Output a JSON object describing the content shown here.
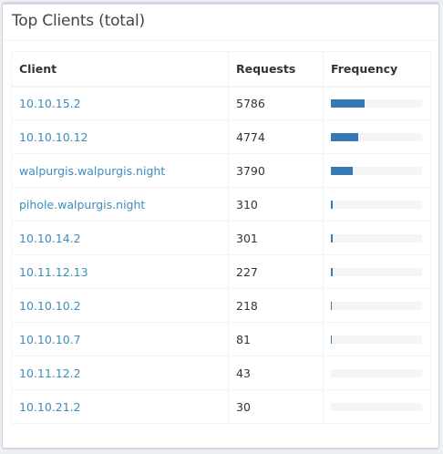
{
  "header": {
    "title": "Top Clients (total)"
  },
  "table": {
    "columns": [
      "Client",
      "Requests",
      "Frequency"
    ],
    "max_requests": 15000,
    "rows": [
      {
        "client": "10.10.15.2",
        "requests": "5786",
        "frequency_fraction": 0.37
      },
      {
        "client": "10.10.10.12",
        "requests": "4774",
        "frequency_fraction": 0.3
      },
      {
        "client": "walpurgis.walpurgis.night",
        "requests": "3790",
        "frequency_fraction": 0.24
      },
      {
        "client": "pihole.walpurgis.night",
        "requests": "310",
        "frequency_fraction": 0.02
      },
      {
        "client": "10.10.14.2",
        "requests": "301",
        "frequency_fraction": 0.02
      },
      {
        "client": "10.11.12.13",
        "requests": "227",
        "frequency_fraction": 0.015
      },
      {
        "client": "10.10.10.2",
        "requests": "218",
        "frequency_fraction": 0.014
      },
      {
        "client": "10.10.10.7",
        "requests": "81",
        "frequency_fraction": 0.012
      },
      {
        "client": "10.11.12.2",
        "requests": "43",
        "frequency_fraction": 0.0
      },
      {
        "client": "10.10.21.2",
        "requests": "30",
        "frequency_fraction": 0.0
      }
    ]
  },
  "colors": {
    "bar": "#337ab7",
    "bar_track": "#f5f5f5",
    "link": "#3c8dbc"
  }
}
